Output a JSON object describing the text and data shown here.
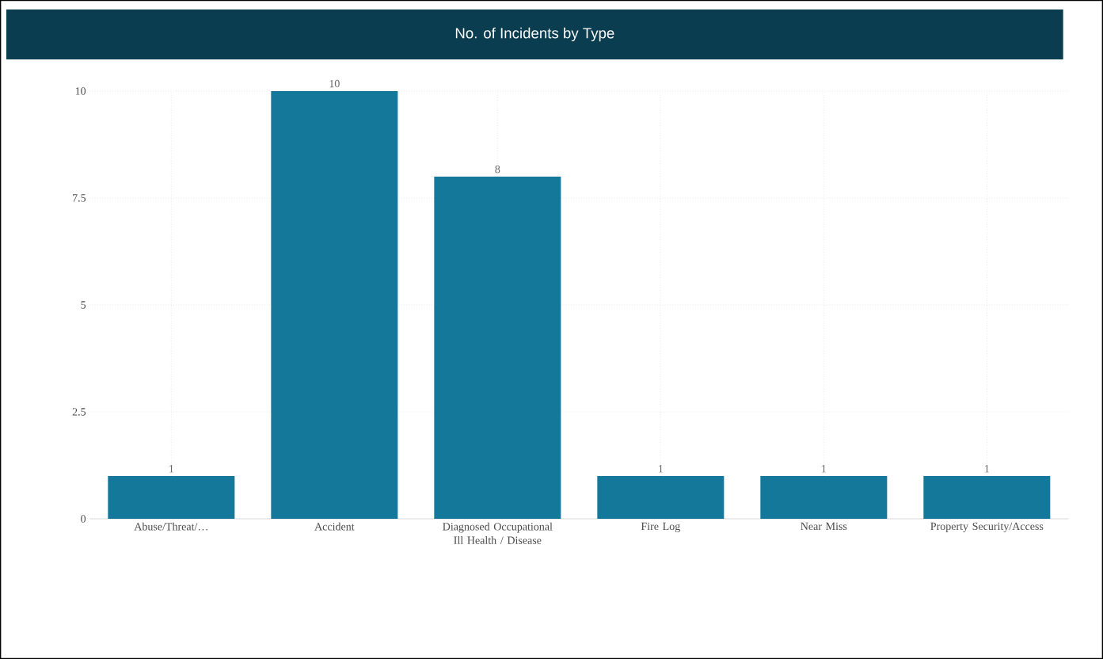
{
  "chart_data": {
    "type": "bar",
    "title": "No. of Incidents by Type",
    "categories": [
      "Abuse/Threat/…",
      "Accident",
      "Diagnosed Occupational Ill Health / Disease",
      "Fire Log",
      "Near Miss",
      "Property Security/Access"
    ],
    "values": [
      1,
      10,
      8,
      1,
      1,
      1
    ],
    "color": "#13789a",
    "ylim": [
      0,
      10
    ],
    "yticks": [
      0,
      2.5,
      5,
      7.5,
      10
    ],
    "grid": true,
    "data_labels": true
  }
}
